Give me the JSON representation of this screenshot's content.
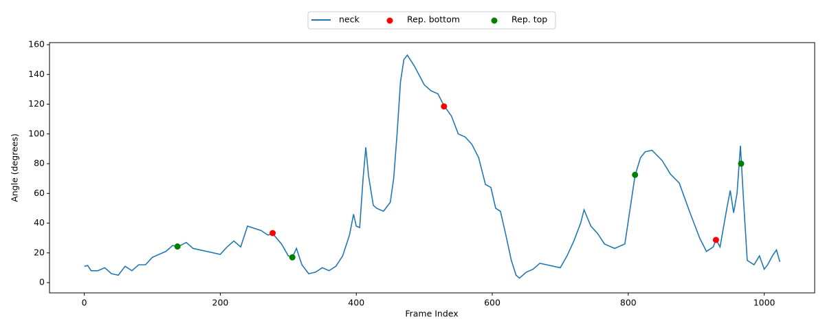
{
  "chart_data": {
    "type": "line",
    "x_label": "Frame Index",
    "y_label": "Angle (degrees)",
    "xlim": [
      -51.2,
      1074.2
    ],
    "ylim": [
      -6.9,
      161.4
    ],
    "xticks": [
      0,
      200,
      400,
      600,
      800,
      1000
    ],
    "yticks": [
      0,
      20,
      40,
      60,
      80,
      100,
      120,
      140,
      160
    ],
    "legend": "upper center outside",
    "series": [
      {
        "name": "neck",
        "type": "line",
        "color": "#1f77b4",
        "x": [
          0,
          5,
          10,
          20,
          30,
          40,
          50,
          60,
          70,
          80,
          90,
          100,
          110,
          120,
          130,
          137,
          150,
          160,
          180,
          200,
          210,
          220,
          230,
          240,
          260,
          270,
          277,
          290,
          300,
          306,
          312,
          320,
          330,
          340,
          350,
          360,
          370,
          380,
          390,
          396,
          400,
          405,
          410,
          414,
          418,
          425,
          430,
          440,
          450,
          455,
          460,
          465,
          470,
          475,
          485,
          500,
          510,
          520,
          529,
          540,
          550,
          560,
          570,
          580,
          590,
          598,
          605,
          612,
          620,
          628,
          635,
          640,
          650,
          660,
          670,
          680,
          690,
          700,
          710,
          720,
          730,
          735,
          745,
          755,
          765,
          780,
          795,
          810,
          818,
          825,
          835,
          850,
          862,
          875,
          890,
          905,
          915,
          925,
          929,
          935,
          945,
          950,
          955,
          960,
          965,
          970,
          975,
          985,
          993,
          1000,
          1005,
          1012,
          1018,
          1023
        ],
        "values": [
          11,
          11.5,
          8,
          8,
          10,
          6,
          5,
          11,
          8,
          12,
          12,
          17,
          19,
          21,
          25,
          24,
          27,
          23,
          21,
          19,
          24,
          28,
          24,
          38,
          35,
          32,
          33,
          26,
          18,
          17,
          23,
          12,
          6,
          7,
          10,
          8,
          11,
          18,
          32,
          46,
          38,
          37,
          70,
          91,
          72,
          52,
          50,
          48,
          54,
          70,
          100,
          135,
          150,
          153,
          146,
          133,
          129,
          127,
          119,
          112,
          100,
          98,
          93,
          84,
          66,
          64,
          50,
          48,
          32,
          15,
          5,
          3,
          7,
          9,
          13,
          12,
          11,
          10,
          18,
          28,
          40,
          49,
          38,
          33,
          26,
          23,
          26,
          72,
          84,
          88,
          89,
          82,
          73,
          67,
          48,
          30,
          21,
          24,
          29,
          24,
          50,
          62,
          47,
          60,
          92,
          52,
          15,
          12,
          18,
          9,
          12,
          18,
          22,
          14
        ]
      },
      {
        "name": "Rep. bottom",
        "type": "scatter",
        "color": "#ff0000",
        "x": [
          277,
          529,
          929
        ],
        "values": [
          33.3,
          118.5,
          28.7
        ]
      },
      {
        "name": "Rep. top",
        "type": "scatter",
        "color": "#008000",
        "x": [
          137,
          306,
          810,
          966
        ],
        "values": [
          24.3,
          17,
          72.5,
          80
        ]
      }
    ]
  }
}
